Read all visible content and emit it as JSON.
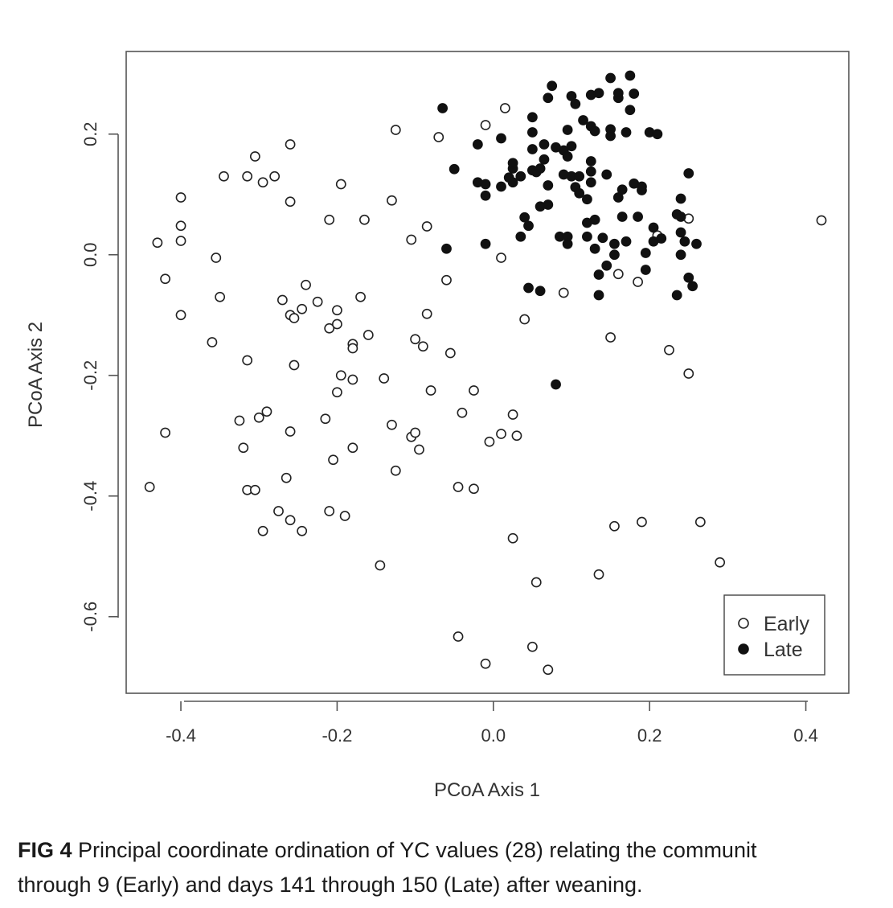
{
  "chart_data": {
    "type": "scatter",
    "xlabel": "PCoA Axis 1",
    "ylabel": "PCoA Axis 2",
    "xlim": [
      -0.47,
      0.455
    ],
    "ylim": [
      -0.727,
      0.337
    ],
    "xticks": [
      "-0.4",
      "-0.2",
      "0.0",
      "0.2",
      "0.4"
    ],
    "yticks": [
      "-0.6",
      "-0.4",
      "-0.2",
      "0.0",
      "0.2"
    ],
    "grid": false,
    "legend_position": "bottom-right",
    "series": [
      {
        "name": "Early",
        "marker": "open-circle",
        "points": [
          [
            -0.43,
            0.02
          ],
          [
            -0.42,
            -0.04
          ],
          [
            -0.4,
            0.095
          ],
          [
            -0.4,
            0.048
          ],
          [
            -0.4,
            0.023
          ],
          [
            -0.4,
            -0.1
          ],
          [
            -0.42,
            -0.295
          ],
          [
            -0.44,
            -0.385
          ],
          [
            -0.355,
            -0.005
          ],
          [
            -0.35,
            -0.07
          ],
          [
            -0.36,
            -0.145
          ],
          [
            -0.345,
            0.13
          ],
          [
            -0.315,
            0.13
          ],
          [
            -0.305,
            0.163
          ],
          [
            -0.295,
            0.12
          ],
          [
            -0.28,
            0.13
          ],
          [
            -0.26,
            0.183
          ],
          [
            -0.26,
            0.088
          ],
          [
            -0.24,
            -0.05
          ],
          [
            -0.27,
            -0.075
          ],
          [
            -0.26,
            -0.1
          ],
          [
            -0.255,
            -0.105
          ],
          [
            -0.245,
            -0.09
          ],
          [
            -0.225,
            -0.078
          ],
          [
            -0.255,
            -0.183
          ],
          [
            -0.315,
            -0.175
          ],
          [
            -0.325,
            -0.275
          ],
          [
            -0.3,
            -0.27
          ],
          [
            -0.29,
            -0.26
          ],
          [
            -0.26,
            -0.293
          ],
          [
            -0.32,
            -0.32
          ],
          [
            -0.315,
            -0.39
          ],
          [
            -0.305,
            -0.39
          ],
          [
            -0.265,
            -0.37
          ],
          [
            -0.275,
            -0.425
          ],
          [
            -0.26,
            -0.44
          ],
          [
            -0.245,
            -0.458
          ],
          [
            -0.295,
            -0.458
          ],
          [
            -0.21,
            -0.425
          ],
          [
            -0.19,
            -0.433
          ],
          [
            -0.205,
            -0.34
          ],
          [
            -0.18,
            -0.32
          ],
          [
            -0.215,
            -0.272
          ],
          [
            -0.2,
            -0.228
          ],
          [
            -0.195,
            -0.2
          ],
          [
            -0.18,
            -0.207
          ],
          [
            -0.14,
            -0.205
          ],
          [
            -0.18,
            -0.148
          ],
          [
            -0.18,
            -0.155
          ],
          [
            -0.16,
            -0.133
          ],
          [
            -0.21,
            -0.122
          ],
          [
            -0.2,
            -0.115
          ],
          [
            -0.2,
            -0.092
          ],
          [
            -0.17,
            -0.07
          ],
          [
            -0.195,
            0.117
          ],
          [
            -0.21,
            0.058
          ],
          [
            -0.165,
            0.058
          ],
          [
            -0.13,
            0.09
          ],
          [
            -0.125,
            0.207
          ],
          [
            -0.13,
            -0.282
          ],
          [
            -0.125,
            -0.358
          ],
          [
            -0.145,
            -0.515
          ],
          [
            -0.105,
            -0.302
          ],
          [
            -0.1,
            -0.295
          ],
          [
            -0.095,
            -0.323
          ],
          [
            -0.1,
            -0.14
          ],
          [
            -0.09,
            -0.152
          ],
          [
            -0.085,
            -0.098
          ],
          [
            -0.08,
            -0.225
          ],
          [
            -0.105,
            0.025
          ],
          [
            -0.085,
            0.047
          ],
          [
            -0.07,
            0.195
          ],
          [
            -0.06,
            -0.042
          ],
          [
            -0.055,
            -0.163
          ],
          [
            -0.04,
            -0.262
          ],
          [
            -0.025,
            -0.225
          ],
          [
            -0.045,
            -0.385
          ],
          [
            -0.025,
            -0.388
          ],
          [
            -0.01,
            0.215
          ],
          [
            0.015,
            0.243
          ],
          [
            0.01,
            -0.005
          ],
          [
            -0.005,
            -0.31
          ],
          [
            0.01,
            -0.297
          ],
          [
            0.025,
            -0.265
          ],
          [
            0.03,
            -0.3
          ],
          [
            0.025,
            -0.47
          ],
          [
            -0.045,
            -0.633
          ],
          [
            -0.01,
            -0.678
          ],
          [
            0.05,
            -0.65
          ],
          [
            0.07,
            -0.688
          ],
          [
            0.055,
            -0.543
          ],
          [
            0.04,
            -0.107
          ],
          [
            0.09,
            -0.063
          ],
          [
            0.135,
            -0.53
          ],
          [
            0.155,
            -0.45
          ],
          [
            0.19,
            -0.443
          ],
          [
            0.265,
            -0.443
          ],
          [
            0.29,
            -0.51
          ],
          [
            0.15,
            -0.137
          ],
          [
            0.16,
            -0.032
          ],
          [
            0.185,
            -0.045
          ],
          [
            0.225,
            -0.158
          ],
          [
            0.25,
            -0.197
          ],
          [
            0.21,
            0.032
          ],
          [
            0.25,
            0.06
          ],
          [
            0.42,
            0.057
          ]
        ]
      },
      {
        "name": "Late",
        "marker": "filled-circle",
        "points": [
          [
            -0.065,
            0.243
          ],
          [
            -0.05,
            0.142
          ],
          [
            -0.06,
            0.01
          ],
          [
            -0.02,
            0.183
          ],
          [
            -0.02,
            0.12
          ],
          [
            -0.01,
            0.117
          ],
          [
            -0.01,
            0.098
          ],
          [
            -0.01,
            0.018
          ],
          [
            0.01,
            0.193
          ],
          [
            0.01,
            0.113
          ],
          [
            0.02,
            0.128
          ],
          [
            0.025,
            0.143
          ],
          [
            0.025,
            0.152
          ],
          [
            0.025,
            0.12
          ],
          [
            0.035,
            0.13
          ],
          [
            0.035,
            0.03
          ],
          [
            0.04,
            0.062
          ],
          [
            0.045,
            0.048
          ],
          [
            0.045,
            -0.055
          ],
          [
            0.05,
            0.228
          ],
          [
            0.05,
            0.203
          ],
          [
            0.05,
            0.175
          ],
          [
            0.05,
            0.14
          ],
          [
            0.055,
            0.137
          ],
          [
            0.06,
            0.143
          ],
          [
            0.06,
            0.08
          ],
          [
            0.06,
            -0.06
          ],
          [
            0.065,
            0.183
          ],
          [
            0.065,
            0.158
          ],
          [
            0.07,
            0.115
          ],
          [
            0.07,
            0.083
          ],
          [
            0.07,
            0.26
          ],
          [
            0.075,
            0.28
          ],
          [
            0.08,
            0.178
          ],
          [
            0.085,
            0.03
          ],
          [
            0.09,
            0.173
          ],
          [
            0.09,
            0.133
          ],
          [
            0.095,
            0.207
          ],
          [
            0.095,
            0.163
          ],
          [
            0.095,
            0.03
          ],
          [
            0.095,
            0.018
          ],
          [
            0.1,
            0.263
          ],
          [
            0.1,
            0.18
          ],
          [
            0.1,
            0.13
          ],
          [
            0.105,
            0.25
          ],
          [
            0.105,
            0.112
          ],
          [
            0.11,
            0.13
          ],
          [
            0.11,
            0.102
          ],
          [
            0.115,
            0.223
          ],
          [
            0.12,
            0.092
          ],
          [
            0.12,
            0.053
          ],
          [
            0.12,
            0.03
          ],
          [
            0.125,
            0.265
          ],
          [
            0.125,
            0.213
          ],
          [
            0.125,
            0.155
          ],
          [
            0.125,
            0.138
          ],
          [
            0.125,
            0.12
          ],
          [
            0.13,
            0.205
          ],
          [
            0.13,
            0.058
          ],
          [
            0.13,
            0.01
          ],
          [
            0.135,
            0.268
          ],
          [
            0.135,
            -0.033
          ],
          [
            0.135,
            -0.067
          ],
          [
            0.14,
            0.028
          ],
          [
            0.145,
            0.133
          ],
          [
            0.145,
            -0.018
          ],
          [
            0.15,
            0.293
          ],
          [
            0.15,
            0.208
          ],
          [
            0.15,
            0.197
          ],
          [
            0.155,
            0.018
          ],
          [
            0.155,
            0.0
          ],
          [
            0.16,
            0.26
          ],
          [
            0.16,
            0.095
          ],
          [
            0.16,
            0.268
          ],
          [
            0.165,
            0.108
          ],
          [
            0.165,
            0.063
          ],
          [
            0.17,
            0.203
          ],
          [
            0.17,
            0.022
          ],
          [
            0.175,
            0.24
          ],
          [
            0.175,
            0.297
          ],
          [
            0.18,
            0.267
          ],
          [
            0.18,
            0.118
          ],
          [
            0.185,
            0.063
          ],
          [
            0.19,
            0.107
          ],
          [
            0.19,
            0.113
          ],
          [
            0.195,
            0.003
          ],
          [
            0.195,
            -0.025
          ],
          [
            0.2,
            0.203
          ],
          [
            0.205,
            0.045
          ],
          [
            0.205,
            0.022
          ],
          [
            0.21,
            0.2
          ],
          [
            0.215,
            0.027
          ],
          [
            0.235,
            0.067
          ],
          [
            0.235,
            -0.067
          ],
          [
            0.24,
            0.093
          ],
          [
            0.24,
            0.063
          ],
          [
            0.24,
            0.037
          ],
          [
            0.24,
            0.0
          ],
          [
            0.245,
            0.022
          ],
          [
            0.25,
            0.135
          ],
          [
            0.25,
            -0.038
          ],
          [
            0.255,
            -0.052
          ],
          [
            0.26,
            0.018
          ],
          [
            0.08,
            -0.215
          ]
        ]
      }
    ]
  },
  "caption": {
    "label": "FIG 4",
    "line1_rest": " Principal coordinate ordination of YC values (28) relating the communit",
    "line2": "through 9 (Early) and days 141 through 150 (Late) after weaning."
  }
}
